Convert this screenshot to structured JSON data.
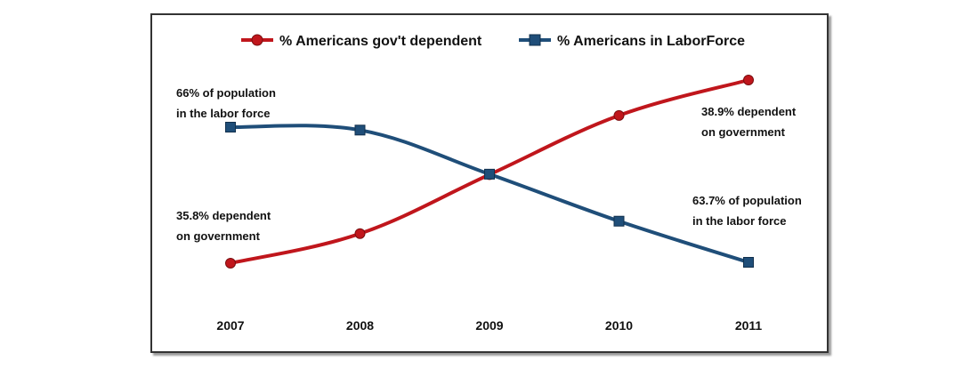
{
  "chart_data": {
    "type": "line",
    "x": [
      "2007",
      "2008",
      "2009",
      "2010",
      "2011"
    ],
    "series": [
      {
        "name": "% Americans gov't dependent",
        "color": "#c0161c",
        "marker": "circle",
        "values": [
          35.8,
          36.3,
          37.3,
          38.3,
          38.9
        ]
      },
      {
        "name": "% Americans in LaborForce",
        "color": "#1f4e79",
        "marker": "square",
        "values": [
          66.0,
          65.95,
          65.2,
          64.4,
          63.7
        ]
      }
    ],
    "annotations": [
      {
        "series": 1,
        "point": 0,
        "lines": [
          "66% of population",
          "in the labor force"
        ]
      },
      {
        "series": 0,
        "point": 0,
        "lines": [
          "35.8% dependent",
          "on government"
        ]
      },
      {
        "series": 0,
        "point": 4,
        "lines": [
          "38.9% dependent",
          "on government"
        ]
      },
      {
        "series": 1,
        "point": 4,
        "lines": [
          "63.7% of population",
          "in the labor force"
        ]
      }
    ],
    "legend_position": "top-center",
    "grid": false,
    "axes_visible": false
  }
}
